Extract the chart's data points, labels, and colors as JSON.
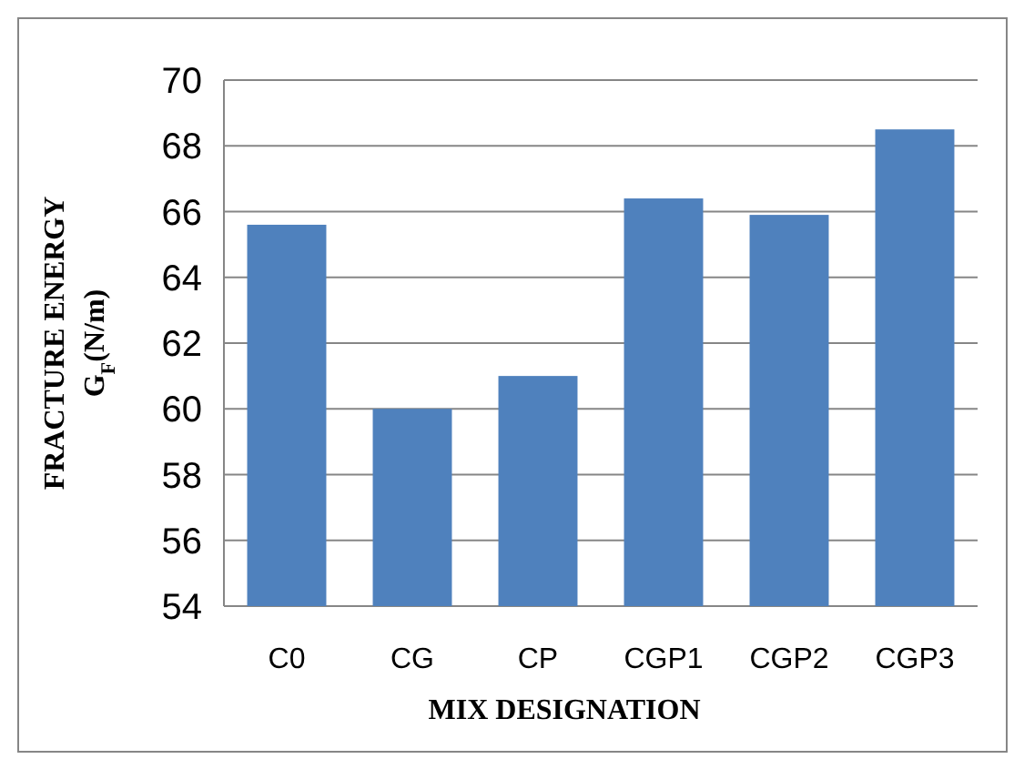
{
  "chart_data": {
    "type": "bar",
    "ylabel": "FRACTURE ENERGY\nG$_{F}$(N/m)",
    "xlabel": "MIX DESIGNATION",
    "categories": [
      "C0",
      "CG",
      "CP",
      "CGP1",
      "CGP2",
      "CGP3"
    ],
    "values": [
      65.6,
      60.0,
      61.0,
      66.4,
      65.9,
      68.5
    ],
    "color": "#4f81bd",
    "ylim": [
      54,
      70
    ],
    "yticks": [
      54,
      56,
      58,
      60,
      62,
      64,
      66,
      68,
      70
    ],
    "grid": "y"
  }
}
